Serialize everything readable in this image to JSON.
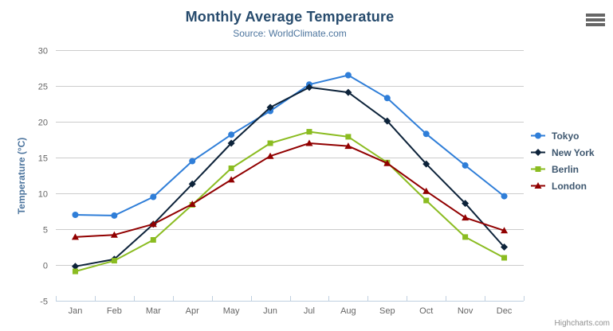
{
  "chart": {
    "title": "Monthly Average Temperature",
    "subtitle": "Source: WorldClimate.com",
    "y_axis_title": "Temperature (°C)",
    "credit": "Highcharts.com"
  },
  "colors": {
    "title": "#274b6d",
    "subtitle": "#4d759e",
    "axis_title": "#4d759e",
    "axis_label": "#666666",
    "gridline": "#cccccc",
    "axis_line": "#c0d0e0",
    "legend_text": "#3e576f",
    "credit": "#909090",
    "export_icon": "#666666",
    "background": "#ffffff"
  },
  "export_menu": {
    "icon": "hamburger-menu-icon"
  },
  "chart_data": {
    "type": "line",
    "title": "Monthly Average Temperature",
    "subtitle": "Source: WorldClimate.com",
    "xlabel": "",
    "ylabel": "Temperature (°C)",
    "ylim": [
      -5,
      30
    ],
    "yticks": [
      -5,
      0,
      5,
      10,
      15,
      20,
      25,
      30
    ],
    "grid": true,
    "legend_position": "right",
    "categories": [
      "Jan",
      "Feb",
      "Mar",
      "Apr",
      "May",
      "Jun",
      "Jul",
      "Aug",
      "Sep",
      "Oct",
      "Nov",
      "Dec"
    ],
    "series": [
      {
        "name": "Tokyo",
        "color": "#2f7ed8",
        "marker": "circle",
        "values": [
          7.0,
          6.9,
          9.5,
          14.5,
          18.2,
          21.5,
          25.2,
          26.5,
          23.3,
          18.3,
          13.9,
          9.6
        ]
      },
      {
        "name": "New York",
        "color": "#0d233a",
        "marker": "diamond",
        "values": [
          -0.2,
          0.8,
          5.7,
          11.3,
          17.0,
          22.0,
          24.8,
          24.1,
          20.1,
          14.1,
          8.6,
          2.5
        ]
      },
      {
        "name": "Berlin",
        "color": "#8bbc21",
        "marker": "square",
        "values": [
          -0.9,
          0.6,
          3.5,
          8.4,
          13.5,
          17.0,
          18.6,
          17.9,
          14.3,
          9.0,
          3.9,
          1.0
        ]
      },
      {
        "name": "London",
        "color": "#910000",
        "marker": "triangle",
        "values": [
          3.9,
          4.2,
          5.7,
          8.5,
          11.9,
          15.2,
          17.0,
          16.6,
          14.2,
          10.3,
          6.6,
          4.8
        ]
      }
    ]
  }
}
